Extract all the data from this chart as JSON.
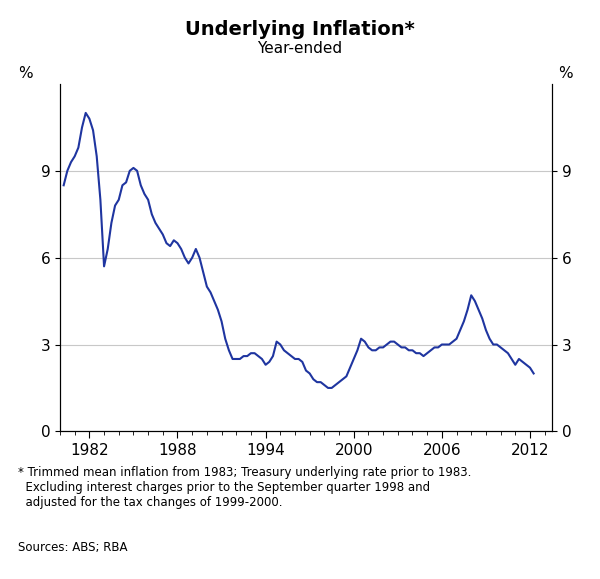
{
  "title": "Underlying Inflation*",
  "subtitle": "Year-ended",
  "ylabel_left": "%",
  "ylabel_right": "%",
  "line_color": "#1f35a0",
  "line_width": 1.5,
  "background_color": "#ffffff",
  "plot_background_color": "#ffffff",
  "grid_color": "#c8c8c8",
  "ylim": [
    0,
    12
  ],
  "yticks": [
    0,
    3,
    6,
    9
  ],
  "footnote_star": "* Trimmed mean inflation from 1983; Treasury underlying rate prior to 1983.\n  Excluding interest charges prior to the September quarter 1998 and\n  adjusted for the tax changes of 1999-2000.",
  "sources": "Sources: ABS; RBA",
  "x_tick_labels": [
    "1982",
    "1988",
    "1994",
    "2000",
    "2006",
    "2012"
  ],
  "x_tick_positions": [
    1982,
    1988,
    1994,
    2000,
    2006,
    2012
  ],
  "xlim": [
    1980,
    2013.5
  ],
  "data": [
    [
      1980.25,
      8.5
    ],
    [
      1980.5,
      9.0
    ],
    [
      1980.75,
      9.3
    ],
    [
      1981.0,
      9.5
    ],
    [
      1981.25,
      9.8
    ],
    [
      1981.5,
      10.5
    ],
    [
      1981.75,
      11.0
    ],
    [
      1982.0,
      10.8
    ],
    [
      1982.25,
      10.4
    ],
    [
      1982.5,
      9.5
    ],
    [
      1982.75,
      8.0
    ],
    [
      1983.0,
      5.7
    ],
    [
      1983.25,
      6.3
    ],
    [
      1983.5,
      7.2
    ],
    [
      1983.75,
      7.8
    ],
    [
      1984.0,
      8.0
    ],
    [
      1984.25,
      8.5
    ],
    [
      1984.5,
      8.6
    ],
    [
      1984.75,
      9.0
    ],
    [
      1985.0,
      9.1
    ],
    [
      1985.25,
      9.0
    ],
    [
      1985.5,
      8.5
    ],
    [
      1985.75,
      8.2
    ],
    [
      1986.0,
      8.0
    ],
    [
      1986.25,
      7.5
    ],
    [
      1986.5,
      7.2
    ],
    [
      1986.75,
      7.0
    ],
    [
      1987.0,
      6.8
    ],
    [
      1987.25,
      6.5
    ],
    [
      1987.5,
      6.4
    ],
    [
      1987.75,
      6.6
    ],
    [
      1988.0,
      6.5
    ],
    [
      1988.25,
      6.3
    ],
    [
      1988.5,
      6.0
    ],
    [
      1988.75,
      5.8
    ],
    [
      1989.0,
      6.0
    ],
    [
      1989.25,
      6.3
    ],
    [
      1989.5,
      6.0
    ],
    [
      1989.75,
      5.5
    ],
    [
      1990.0,
      5.0
    ],
    [
      1990.25,
      4.8
    ],
    [
      1990.5,
      4.5
    ],
    [
      1990.75,
      4.2
    ],
    [
      1991.0,
      3.8
    ],
    [
      1991.25,
      3.2
    ],
    [
      1991.5,
      2.8
    ],
    [
      1991.75,
      2.5
    ],
    [
      1992.0,
      2.5
    ],
    [
      1992.25,
      2.5
    ],
    [
      1992.5,
      2.6
    ],
    [
      1992.75,
      2.6
    ],
    [
      1993.0,
      2.7
    ],
    [
      1993.25,
      2.7
    ],
    [
      1993.5,
      2.6
    ],
    [
      1993.75,
      2.5
    ],
    [
      1994.0,
      2.3
    ],
    [
      1994.25,
      2.4
    ],
    [
      1994.5,
      2.6
    ],
    [
      1994.75,
      3.1
    ],
    [
      1995.0,
      3.0
    ],
    [
      1995.25,
      2.8
    ],
    [
      1995.5,
      2.7
    ],
    [
      1995.75,
      2.6
    ],
    [
      1996.0,
      2.5
    ],
    [
      1996.25,
      2.5
    ],
    [
      1996.5,
      2.4
    ],
    [
      1996.75,
      2.1
    ],
    [
      1997.0,
      2.0
    ],
    [
      1997.25,
      1.8
    ],
    [
      1997.5,
      1.7
    ],
    [
      1997.75,
      1.7
    ],
    [
      1998.0,
      1.6
    ],
    [
      1998.25,
      1.5
    ],
    [
      1998.5,
      1.5
    ],
    [
      1998.75,
      1.6
    ],
    [
      1999.0,
      1.7
    ],
    [
      1999.25,
      1.8
    ],
    [
      1999.5,
      1.9
    ],
    [
      1999.75,
      2.2
    ],
    [
      2000.0,
      2.5
    ],
    [
      2000.25,
      2.8
    ],
    [
      2000.5,
      3.2
    ],
    [
      2000.75,
      3.1
    ],
    [
      2001.0,
      2.9
    ],
    [
      2001.25,
      2.8
    ],
    [
      2001.5,
      2.8
    ],
    [
      2001.75,
      2.9
    ],
    [
      2002.0,
      2.9
    ],
    [
      2002.25,
      3.0
    ],
    [
      2002.5,
      3.1
    ],
    [
      2002.75,
      3.1
    ],
    [
      2003.0,
      3.0
    ],
    [
      2003.25,
      2.9
    ],
    [
      2003.5,
      2.9
    ],
    [
      2003.75,
      2.8
    ],
    [
      2004.0,
      2.8
    ],
    [
      2004.25,
      2.7
    ],
    [
      2004.5,
      2.7
    ],
    [
      2004.75,
      2.6
    ],
    [
      2005.0,
      2.7
    ],
    [
      2005.25,
      2.8
    ],
    [
      2005.5,
      2.9
    ],
    [
      2005.75,
      2.9
    ],
    [
      2006.0,
      3.0
    ],
    [
      2006.25,
      3.0
    ],
    [
      2006.5,
      3.0
    ],
    [
      2006.75,
      3.1
    ],
    [
      2007.0,
      3.2
    ],
    [
      2007.25,
      3.5
    ],
    [
      2007.5,
      3.8
    ],
    [
      2007.75,
      4.2
    ],
    [
      2008.0,
      4.7
    ],
    [
      2008.25,
      4.5
    ],
    [
      2008.5,
      4.2
    ],
    [
      2008.75,
      3.9
    ],
    [
      2009.0,
      3.5
    ],
    [
      2009.25,
      3.2
    ],
    [
      2009.5,
      3.0
    ],
    [
      2009.75,
      3.0
    ],
    [
      2010.0,
      2.9
    ],
    [
      2010.25,
      2.8
    ],
    [
      2010.5,
      2.7
    ],
    [
      2010.75,
      2.5
    ],
    [
      2011.0,
      2.3
    ],
    [
      2011.25,
      2.5
    ],
    [
      2011.5,
      2.4
    ],
    [
      2011.75,
      2.3
    ],
    [
      2012.0,
      2.2
    ],
    [
      2012.25,
      2.0
    ]
  ]
}
